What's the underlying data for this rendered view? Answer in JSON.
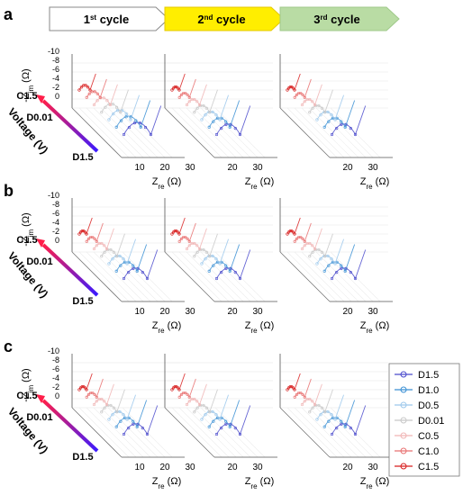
{
  "figure": {
    "panels": [
      "a",
      "b",
      "c"
    ],
    "cycles": [
      {
        "label": "1st cycle",
        "color": "#ffffff",
        "border": "#888888"
      },
      {
        "label": "2nd cycle",
        "color": "#ffee00",
        "border": "#e6c800"
      },
      {
        "label": "3rd cycle",
        "color": "#b9dca4",
        "border": "#9fc98a"
      }
    ],
    "voltage_axis": {
      "label": "Voltage (V)",
      "top": "C1.5",
      "mid": "D0.01",
      "bottom": "D1.5"
    },
    "y_axis": {
      "label": "-Zim (Ω)",
      "ticks": [
        "-10",
        "-8",
        "-6",
        "-4",
        "-2",
        "0"
      ]
    },
    "x_axis": {
      "label": "Zre (Ω)",
      "ticks_first": [
        "10",
        "20",
        "30"
      ],
      "ticks_other": [
        "20",
        "30"
      ]
    },
    "legend": {
      "entries": [
        {
          "name": "D1.5",
          "color": "#4a4acc"
        },
        {
          "name": "D1.0",
          "color": "#3a8fd4"
        },
        {
          "name": "D0.5",
          "color": "#9cc8ec"
        },
        {
          "name": "D0.01",
          "color": "#c8c8c8"
        },
        {
          "name": "C0.5",
          "color": "#f0b4b4"
        },
        {
          "name": "C1.0",
          "color": "#e87070"
        },
        {
          "name": "C1.5",
          "color": "#d81e1e"
        }
      ]
    }
  },
  "chart_data": {
    "type": "line",
    "ylabel": "-Zim (Ω)",
    "xlabel": "Zre (Ω)",
    "series": [
      {
        "name": "D1.5"
      },
      {
        "name": "D1.0"
      },
      {
        "name": "D0.5"
      },
      {
        "name": "D0.01"
      },
      {
        "name": "C0.5"
      },
      {
        "name": "C1.0"
      },
      {
        "name": "C1.5"
      }
    ]
  }
}
